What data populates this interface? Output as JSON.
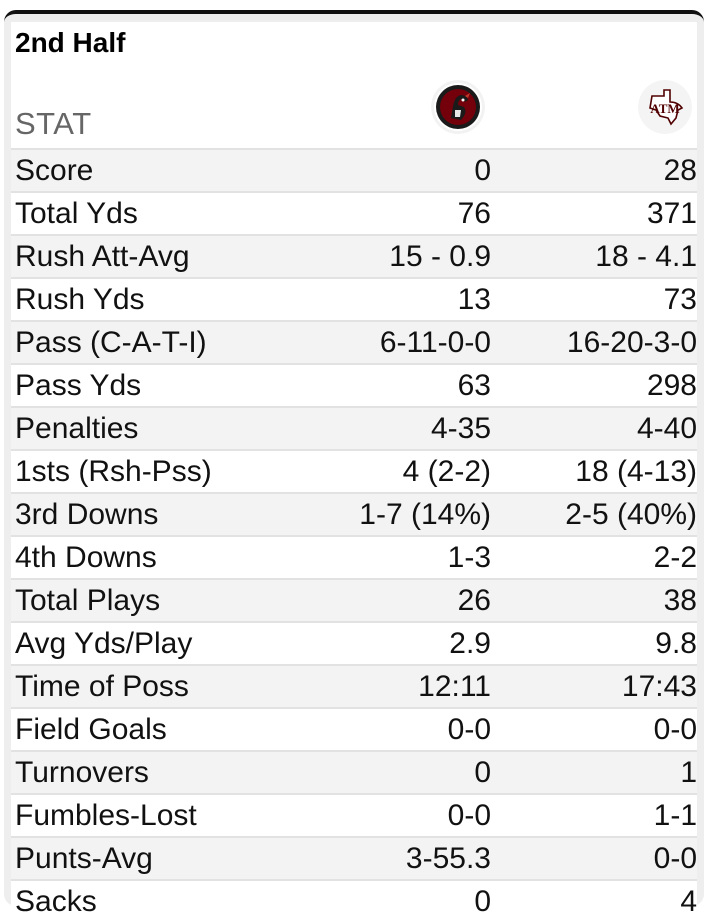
{
  "title": "2nd Half",
  "header": {
    "stat_label": "STAT",
    "team1_logo": "south-carolina-gamecock-logo",
    "team2_logo": "texas-am-logo"
  },
  "colors": {
    "team1_primary": "#73000a",
    "team2_primary": "#500000"
  },
  "rows": [
    {
      "label": "Score",
      "team1": "0",
      "team2": "28"
    },
    {
      "label": "Total Yds",
      "team1": "76",
      "team2": "371"
    },
    {
      "label": "Rush Att-Avg",
      "team1": "15 - 0.9",
      "team2": "18 - 4.1"
    },
    {
      "label": "Rush Yds",
      "team1": "13",
      "team2": "73"
    },
    {
      "label": "Pass (C-A-T-I)",
      "team1": "6-11-0-0",
      "team2": "16-20-3-0"
    },
    {
      "label": "Pass Yds",
      "team1": "63",
      "team2": "298"
    },
    {
      "label": "Penalties",
      "team1": "4-35",
      "team2": "4-40"
    },
    {
      "label": "1sts (Rsh-Pss)",
      "team1": "4 (2-2)",
      "team2": "18 (4-13)"
    },
    {
      "label": "3rd Downs",
      "team1": "1-7 (14%)",
      "team2": "2-5 (40%)"
    },
    {
      "label": "4th Downs",
      "team1": "1-3",
      "team2": "2-2"
    },
    {
      "label": "Total Plays",
      "team1": "26",
      "team2": "38"
    },
    {
      "label": "Avg Yds/Play",
      "team1": "2.9",
      "team2": "9.8"
    },
    {
      "label": "Time of Poss",
      "team1": "12:11",
      "team2": "17:43"
    },
    {
      "label": "Field Goals",
      "team1": "0-0",
      "team2": "0-0"
    },
    {
      "label": "Turnovers",
      "team1": "0",
      "team2": "1"
    },
    {
      "label": "Fumbles-Lost",
      "team1": "0-0",
      "team2": "1-1"
    },
    {
      "label": "Punts-Avg",
      "team1": "3-55.3",
      "team2": "0-0"
    },
    {
      "label": "Sacks",
      "team1": "0",
      "team2": "4"
    }
  ]
}
